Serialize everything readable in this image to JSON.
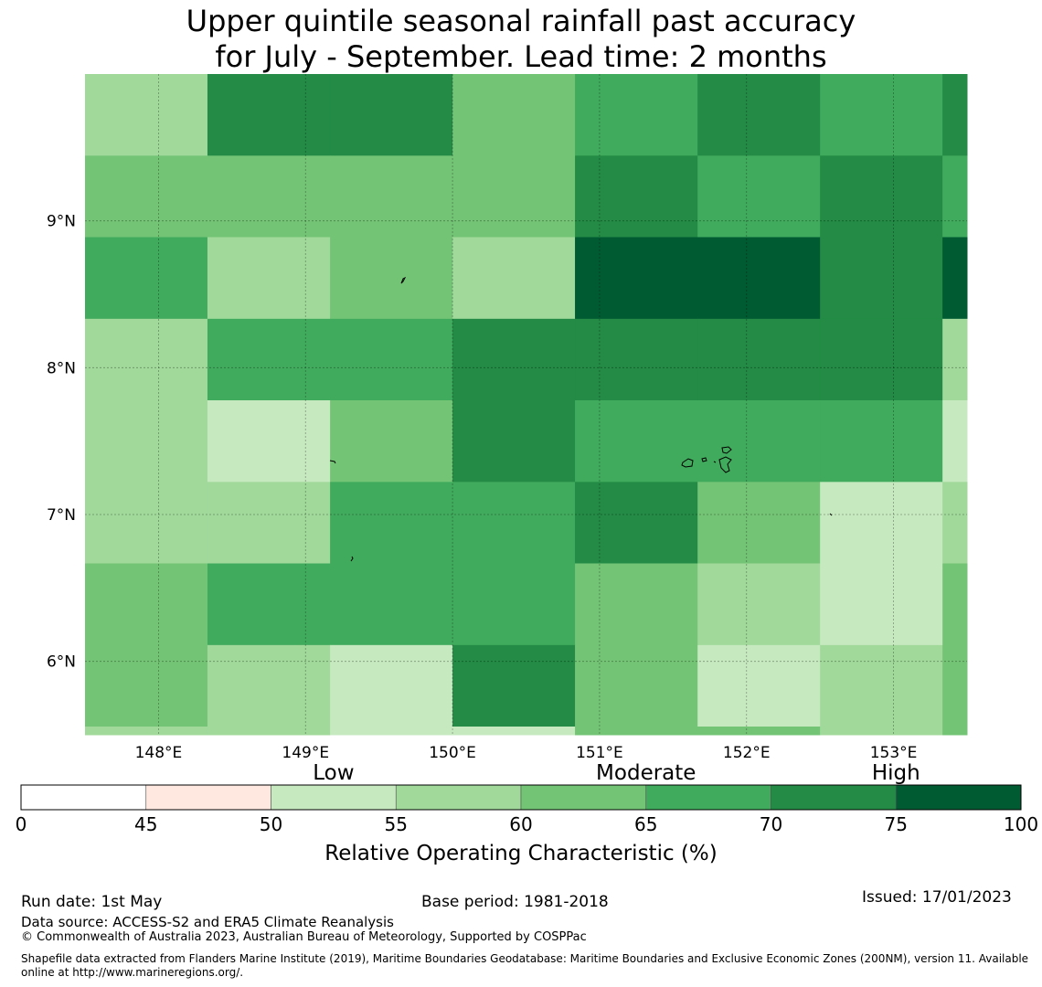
{
  "title": {
    "line1": "Upper quintile seasonal rainfall past accuracy",
    "line2": "for July - September. Lead time: 2 months"
  },
  "map": {
    "lon_range": [
      147.5,
      153.5
    ],
    "lat_range": [
      5.5,
      10.0
    ],
    "x_ticks": [
      {
        "value": 148,
        "label": "148°E"
      },
      {
        "value": 149,
        "label": "149°E"
      },
      {
        "value": 150,
        "label": "150°E"
      },
      {
        "value": 151,
        "label": "151°E"
      },
      {
        "value": 152,
        "label": "152°E"
      },
      {
        "value": 153,
        "label": "153°E"
      }
    ],
    "y_ticks": [
      {
        "value": 9,
        "label": "9°N"
      },
      {
        "value": 8,
        "label": "8°N"
      },
      {
        "value": 7,
        "label": "7°N"
      },
      {
        "value": 6,
        "label": "6°N"
      }
    ],
    "gridlines": true,
    "cell_lon_edges": [
      147.5,
      148.333,
      149.167,
      150.0,
      150.833,
      151.667,
      152.5,
      153.333,
      153.5
    ],
    "cell_lat_edges": [
      10.0,
      9.444,
      8.889,
      8.333,
      7.778,
      7.222,
      6.667,
      6.111,
      5.556,
      5.5
    ],
    "rows_roc_percent": [
      [
        57,
        72,
        72,
        62,
        67,
        72,
        67,
        72
      ],
      [
        62,
        62,
        62,
        62,
        72,
        67,
        72,
        67
      ],
      [
        67,
        57,
        62,
        57,
        77,
        77,
        72,
        77
      ],
      [
        57,
        67,
        67,
        72,
        72,
        72,
        72,
        57
      ],
      [
        57,
        52,
        62,
        72,
        67,
        67,
        67,
        52
      ],
      [
        57,
        57,
        67,
        67,
        72,
        62,
        52,
        57
      ],
      [
        62,
        67,
        67,
        67,
        62,
        57,
        52,
        62
      ],
      [
        62,
        57,
        52,
        72,
        62,
        52,
        57,
        62
      ],
      [
        57,
        57,
        52,
        52,
        62,
        62,
        57,
        62
      ]
    ]
  },
  "colorbar": {
    "boundaries": [
      0,
      45,
      50,
      55,
      60,
      65,
      70,
      75,
      100
    ],
    "boundary_labels": [
      "0",
      "45",
      "50",
      "55",
      "60",
      "65",
      "70",
      "75",
      "100"
    ],
    "colors": [
      "#ffffff",
      "#fee8df",
      "#c7e9c0",
      "#a1d99b",
      "#74c476",
      "#41ab5d",
      "#238b45",
      "#005a32"
    ],
    "categories": [
      {
        "label": "Low",
        "center": 52.5
      },
      {
        "label": "Moderate",
        "center": 65
      },
      {
        "label": "High",
        "center": 75
      }
    ],
    "label": "Relative Operating Characteristic (%)"
  },
  "footer": {
    "run_date": "Run date: 1st May",
    "base_period": "Base period: 1981-2018",
    "issued": "Issued: 17/01/2023",
    "data_source": "Data source: ACCESS-S2 and ERA5 Climate Reanalysis",
    "copyright": "© Commonwealth of Australia 2023, Australian Bureau of Meteorology, Supported by COSPPac",
    "shapefile": "Shapefile data extracted from Flanders Marine Institute (2019), Maritime Boundaries Geodatabase: Maritime Boundaries and Exclusive Economic Zones (200NM), version 11. Available online at http://www.marineregions.org/."
  }
}
